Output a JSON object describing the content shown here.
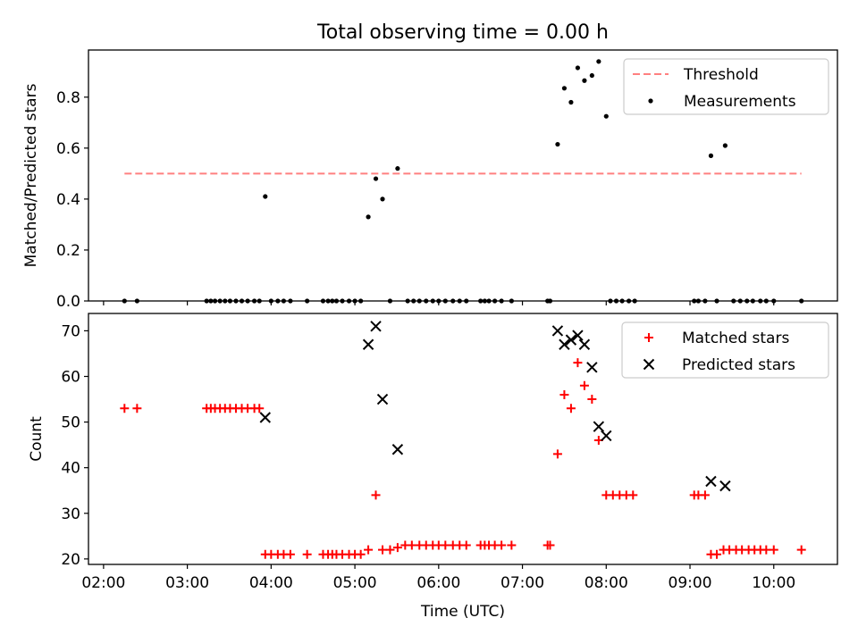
{
  "figure": {
    "title": "Total observing time = 0.00 h"
  },
  "chart_data": [
    {
      "type": "scatter",
      "ylabel": "Matched/Predicted stars",
      "xlabel": "",
      "xlim": [
        1.82,
        10.76
      ],
      "ylim": [
        0.0,
        0.985
      ],
      "yticks": [
        0.0,
        0.2,
        0.4,
        0.6,
        0.8
      ],
      "ytick_labels": [
        "0.0",
        "0.2",
        "0.4",
        "0.6",
        "0.8"
      ],
      "grid": false,
      "legend_position": "upper right",
      "threshold": {
        "name": "Threshold",
        "y": 0.5,
        "x_range": [
          2.25,
          10.33
        ],
        "color": "#ff8080",
        "style": "dashed"
      },
      "series": [
        {
          "name": "Measurements",
          "marker": "dot",
          "color": "#000000",
          "points": [
            [
              2.25,
              0
            ],
            [
              2.4,
              0
            ],
            [
              3.23,
              0
            ],
            [
              3.28,
              0
            ],
            [
              3.33,
              0
            ],
            [
              3.39,
              0
            ],
            [
              3.45,
              0
            ],
            [
              3.51,
              0
            ],
            [
              3.58,
              0
            ],
            [
              3.65,
              0
            ],
            [
              3.72,
              0
            ],
            [
              3.8,
              0
            ],
            [
              3.86,
              0
            ],
            [
              3.93,
              0.41
            ],
            [
              4.0,
              0
            ],
            [
              4.08,
              0
            ],
            [
              4.15,
              0
            ],
            [
              4.23,
              0
            ],
            [
              4.43,
              0
            ],
            [
              4.62,
              0
            ],
            [
              4.68,
              0
            ],
            [
              4.73,
              0
            ],
            [
              4.78,
              0
            ],
            [
              4.85,
              0
            ],
            [
              4.93,
              0
            ],
            [
              5.0,
              0
            ],
            [
              5.07,
              0
            ],
            [
              5.16,
              0.33
            ],
            [
              5.25,
              0.48
            ],
            [
              5.33,
              0.4
            ],
            [
              5.42,
              0
            ],
            [
              5.51,
              0.52
            ],
            [
              5.63,
              0
            ],
            [
              5.7,
              0
            ],
            [
              5.77,
              0
            ],
            [
              5.85,
              0
            ],
            [
              5.93,
              0
            ],
            [
              6.0,
              0
            ],
            [
              6.08,
              0
            ],
            [
              6.17,
              0
            ],
            [
              6.25,
              0
            ],
            [
              6.33,
              0
            ],
            [
              6.5,
              0
            ],
            [
              6.55,
              0
            ],
            [
              6.6,
              0
            ],
            [
              6.67,
              0
            ],
            [
              6.75,
              0
            ],
            [
              6.87,
              0
            ],
            [
              7.3,
              0
            ],
            [
              7.33,
              0
            ],
            [
              7.42,
              0.615
            ],
            [
              7.5,
              0.835
            ],
            [
              7.58,
              0.78
            ],
            [
              7.66,
              0.915
            ],
            [
              7.74,
              0.865
            ],
            [
              7.83,
              0.885
            ],
            [
              7.91,
              0.94
            ],
            [
              8.0,
              0.725
            ],
            [
              8.05,
              0
            ],
            [
              8.12,
              0
            ],
            [
              8.19,
              0
            ],
            [
              8.27,
              0
            ],
            [
              8.34,
              0
            ],
            [
              9.05,
              0
            ],
            [
              9.1,
              0
            ],
            [
              9.18,
              0
            ],
            [
              9.25,
              0.57
            ],
            [
              9.42,
              0.61
            ],
            [
              9.32,
              0
            ],
            [
              9.52,
              0
            ],
            [
              9.6,
              0
            ],
            [
              9.68,
              0
            ],
            [
              9.75,
              0
            ],
            [
              9.84,
              0
            ],
            [
              9.91,
              0
            ],
            [
              10.0,
              0
            ],
            [
              10.33,
              0
            ]
          ]
        }
      ]
    },
    {
      "type": "scatter",
      "ylabel": "Count",
      "xlabel": "Time (UTC)",
      "xlim": [
        1.82,
        10.76
      ],
      "ylim": [
        18.8,
        73.8
      ],
      "yticks": [
        20,
        30,
        40,
        50,
        60,
        70
      ],
      "ytick_labels": [
        "20",
        "30",
        "40",
        "50",
        "60",
        "70"
      ],
      "xticks": [
        2,
        3,
        4,
        5,
        6,
        7,
        8,
        9,
        10
      ],
      "xtick_labels": [
        "02:00",
        "03:00",
        "04:00",
        "05:00",
        "06:00",
        "07:00",
        "08:00",
        "09:00",
        "10:00"
      ],
      "grid": false,
      "legend_position": "upper right",
      "series": [
        {
          "name": "Matched stars",
          "marker": "plus",
          "color": "#ff0000",
          "points": [
            [
              2.25,
              53
            ],
            [
              2.4,
              53
            ],
            [
              3.23,
              53
            ],
            [
              3.28,
              53
            ],
            [
              3.33,
              53
            ],
            [
              3.39,
              53
            ],
            [
              3.45,
              53
            ],
            [
              3.51,
              53
            ],
            [
              3.58,
              53
            ],
            [
              3.65,
              53
            ],
            [
              3.72,
              53
            ],
            [
              3.8,
              53
            ],
            [
              3.86,
              53
            ],
            [
              3.93,
              21
            ],
            [
              4.0,
              21
            ],
            [
              4.08,
              21
            ],
            [
              4.15,
              21
            ],
            [
              4.23,
              21
            ],
            [
              4.43,
              21
            ],
            [
              4.62,
              21
            ],
            [
              4.68,
              21
            ],
            [
              4.73,
              21
            ],
            [
              4.78,
              21
            ],
            [
              4.85,
              21
            ],
            [
              4.93,
              21
            ],
            [
              5.0,
              21
            ],
            [
              5.07,
              21
            ],
            [
              5.16,
              22
            ],
            [
              5.25,
              34
            ],
            [
              5.33,
              22
            ],
            [
              5.42,
              22
            ],
            [
              5.51,
              22.5
            ],
            [
              5.6,
              23
            ],
            [
              5.68,
              23
            ],
            [
              5.77,
              23
            ],
            [
              5.85,
              23
            ],
            [
              5.93,
              23
            ],
            [
              6.0,
              23
            ],
            [
              6.08,
              23
            ],
            [
              6.17,
              23
            ],
            [
              6.25,
              23
            ],
            [
              6.33,
              23
            ],
            [
              6.5,
              23
            ],
            [
              6.55,
              23
            ],
            [
              6.6,
              23
            ],
            [
              6.67,
              23
            ],
            [
              6.75,
              23
            ],
            [
              6.87,
              23
            ],
            [
              7.3,
              23
            ],
            [
              7.33,
              23
            ],
            [
              7.42,
              43
            ],
            [
              7.5,
              56
            ],
            [
              7.58,
              53
            ],
            [
              7.66,
              63
            ],
            [
              7.74,
              58
            ],
            [
              7.83,
              55
            ],
            [
              7.91,
              46
            ],
            [
              8.0,
              34
            ],
            [
              8.08,
              34
            ],
            [
              8.16,
              34
            ],
            [
              8.24,
              34
            ],
            [
              8.32,
              34
            ],
            [
              9.05,
              34
            ],
            [
              9.1,
              34
            ],
            [
              9.18,
              34
            ],
            [
              9.25,
              21
            ],
            [
              9.32,
              21
            ],
            [
              9.4,
              22
            ],
            [
              9.47,
              22
            ],
            [
              9.55,
              22
            ],
            [
              9.62,
              22
            ],
            [
              9.7,
              22
            ],
            [
              9.77,
              22
            ],
            [
              9.84,
              22
            ],
            [
              9.91,
              22
            ],
            [
              10.0,
              22
            ],
            [
              10.33,
              22
            ]
          ]
        },
        {
          "name": "Predicted stars",
          "marker": "x",
          "color": "#000000",
          "points": [
            [
              3.93,
              51
            ],
            [
              5.16,
              67
            ],
            [
              5.25,
              71
            ],
            [
              5.33,
              55
            ],
            [
              5.51,
              44
            ],
            [
              7.42,
              70
            ],
            [
              7.5,
              67
            ],
            [
              7.58,
              68
            ],
            [
              7.66,
              69
            ],
            [
              7.74,
              67
            ],
            [
              7.83,
              62
            ],
            [
              7.91,
              49
            ],
            [
              8.0,
              47
            ],
            [
              9.25,
              37
            ],
            [
              9.42,
              36
            ]
          ]
        }
      ]
    }
  ]
}
